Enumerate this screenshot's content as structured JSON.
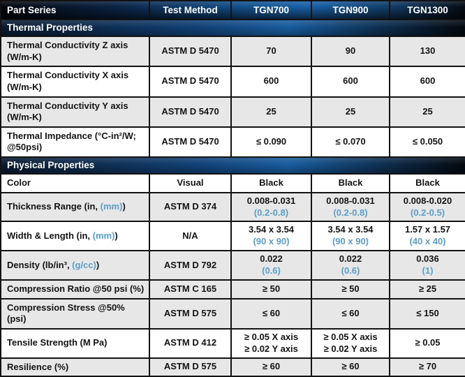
{
  "table": {
    "header": {
      "part_series": "Part Series",
      "test_method": "Test Method",
      "products": [
        "TGN700",
        "TGN900",
        "TGN1300"
      ]
    },
    "colors": {
      "accent_blue": "#5b9ec9",
      "row_gray": "#e7e7e7",
      "header_blue": "#1a62aa",
      "header_dark": "#04080e",
      "text": "#131313"
    },
    "sections": [
      {
        "title": "Thermal Properties",
        "rows": [
          {
            "shade": "gray",
            "label": [
              {
                "t": "Thermal Conductivity Z axis (W/m-K)"
              }
            ],
            "method": "ASTM D 5470",
            "values": [
              [
                {
                  "t": "70"
                }
              ],
              [
                {
                  "t": "90"
                }
              ],
              [
                {
                  "t": "130"
                }
              ]
            ]
          },
          {
            "shade": "white",
            "label": [
              {
                "t": "Thermal Conductivity X axis (W/m-K)"
              }
            ],
            "method": "ASTM D 5470",
            "values": [
              [
                {
                  "t": "600"
                }
              ],
              [
                {
                  "t": "600"
                }
              ],
              [
                {
                  "t": "600"
                }
              ]
            ]
          },
          {
            "shade": "gray",
            "label": [
              {
                "t": "Thermal Conductivity Y axis (W/m-K)"
              }
            ],
            "method": "ASTM D 5470",
            "values": [
              [
                {
                  "t": "25"
                }
              ],
              [
                {
                  "t": "25"
                }
              ],
              [
                {
                  "t": "25"
                }
              ]
            ]
          },
          {
            "shade": "white",
            "label": [
              {
                "t": "Thermal Impedance (°C-in²/W; @50psi)"
              }
            ],
            "method": "ASTM D 5470",
            "values": [
              [
                {
                  "t": "≤ 0.090"
                }
              ],
              [
                {
                  "t": "≤ 0.070"
                }
              ],
              [
                {
                  "t": "≤ 0.050"
                }
              ]
            ]
          }
        ]
      },
      {
        "title": "Physical Properties",
        "rows": [
          {
            "shade": "white",
            "label": [
              {
                "t": "Color"
              }
            ],
            "method": "Visual",
            "values": [
              [
                {
                  "t": "Black"
                }
              ],
              [
                {
                  "t": "Black"
                }
              ],
              [
                {
                  "t": "Black"
                }
              ]
            ]
          },
          {
            "shade": "gray",
            "label": [
              {
                "t": "Thickness Range (in, "
              },
              {
                "t": "(mm)",
                "c": "blue"
              },
              {
                "t": ")"
              }
            ],
            "method": "ASTM D 374",
            "values": [
              [
                {
                  "t": "0.008-0.031"
                },
                {
                  "t": "(0.2-0.8)",
                  "c": "blue"
                }
              ],
              [
                {
                  "t": "0.008-0.031"
                },
                {
                  "t": "(0.2-0.8)",
                  "c": "blue"
                }
              ],
              [
                {
                  "t": "0.008-0.020"
                },
                {
                  "t": "(0.2-0.5)",
                  "c": "blue"
                }
              ]
            ]
          },
          {
            "shade": "white",
            "label": [
              {
                "t": "Width & Length (in, "
              },
              {
                "t": "(mm)",
                "c": "blue"
              },
              {
                "t": ")"
              }
            ],
            "method": "N/A",
            "values": [
              [
                {
                  "t": "3.54 x 3.54"
                },
                {
                  "t": "(90 x 90)",
                  "c": "blue"
                }
              ],
              [
                {
                  "t": "3.54 x 3.54"
                },
                {
                  "t": "(90 x 90)",
                  "c": "blue"
                }
              ],
              [
                {
                  "t": "1.57 x 1.57"
                },
                {
                  "t": "(40 x 40)",
                  "c": "blue"
                }
              ]
            ]
          },
          {
            "shade": "gray",
            "label": [
              {
                "t": "Density (lb/in³, "
              },
              {
                "t": "(g/cc)",
                "c": "blue"
              },
              {
                "t": ")"
              }
            ],
            "method": "ASTM D 792",
            "values": [
              [
                {
                  "t": "0.022"
                },
                {
                  "t": "(0.6)",
                  "c": "blue"
                }
              ],
              [
                {
                  "t": "0.022"
                },
                {
                  "t": "(0.6)",
                  "c": "blue"
                }
              ],
              [
                {
                  "t": "0.036"
                },
                {
                  "t": "(1)",
                  "c": "blue"
                }
              ]
            ]
          },
          {
            "shade": "gray",
            "label": [
              {
                "t": "Compression Ratio @50 psi (%)"
              }
            ],
            "method": "ASTM C 165",
            "values": [
              [
                {
                  "t": "≥ 50"
                }
              ],
              [
                {
                  "t": "≥ 50"
                }
              ],
              [
                {
                  "t": "≥ 25"
                }
              ]
            ]
          },
          {
            "shade": "gray",
            "label": [
              {
                "t": "Compression Stress @50% (psi)"
              }
            ],
            "method": "ASTM D 575",
            "values": [
              [
                {
                  "t": "≤ 60"
                }
              ],
              [
                {
                  "t": "≤ 60"
                }
              ],
              [
                {
                  "t": "≤ 150"
                }
              ]
            ]
          },
          {
            "shade": "white",
            "label": [
              {
                "t": "Tensile Strength (M Pa)"
              }
            ],
            "method": "ASTM D 412",
            "values": [
              [
                {
                  "t": "≥ 0.05 X axis"
                },
                {
                  "t": "≥ 0.02 Y axis"
                }
              ],
              [
                {
                  "t": "≥ 0.05 X axis"
                },
                {
                  "t": "≥ 0.02 Y axis"
                }
              ],
              [
                {
                  "t": "≥ 0.05"
                }
              ]
            ]
          },
          {
            "shade": "gray",
            "label": [
              {
                "t": "Resilience (%)"
              }
            ],
            "method": "ASTM D 575",
            "values": [
              [
                {
                  "t": "≥ 60"
                }
              ],
              [
                {
                  "t": "≥ 60"
                }
              ],
              [
                {
                  "t": "≥ 70"
                }
              ]
            ]
          }
        ]
      }
    ]
  }
}
